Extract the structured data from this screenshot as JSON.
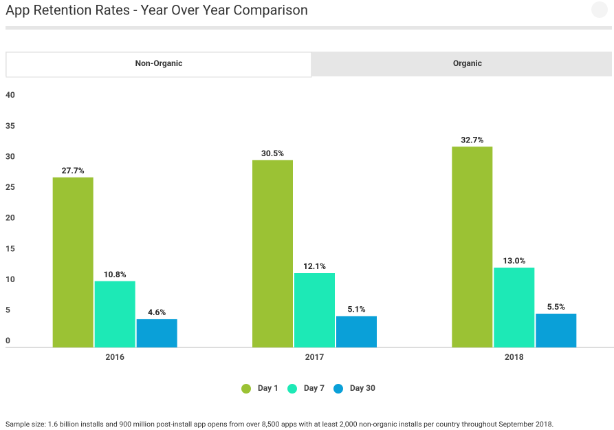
{
  "tabs": [
    "Non-Organic",
    "Organic"
  ],
  "chart_data": {
    "type": "bar",
    "title": "App Retention Rates - Year Over Year Comparison",
    "categories": [
      "2016",
      "2017",
      "2018"
    ],
    "series": [
      {
        "name": "Day 1",
        "color": "#9bc234",
        "values": [
          27.7,
          30.5,
          32.7
        ],
        "value_labels": [
          "27.7%",
          "30.5%",
          "32.7%"
        ]
      },
      {
        "name": "Day 7",
        "color": "#1de9b6",
        "values": [
          10.8,
          12.1,
          13.0
        ],
        "value_labels": [
          "10.8%",
          "12.1%",
          "13.0%"
        ]
      },
      {
        "name": "Day 30",
        "color": "#0aa0d8",
        "values": [
          4.6,
          5.1,
          5.5
        ],
        "value_labels": [
          "4.6%",
          "5.1%",
          "5.5%"
        ]
      }
    ],
    "ylim": [
      0,
      40
    ],
    "yticks": [
      0,
      5,
      10,
      15,
      20,
      25,
      30,
      35,
      40
    ],
    "grid": false,
    "legend": "bottom",
    "footnote": "Sample size: 1.6 billion installs and 900 million post-install app opens from over 8,500 apps with at least 2,000 non-organic installs per country throughout September 2018."
  }
}
